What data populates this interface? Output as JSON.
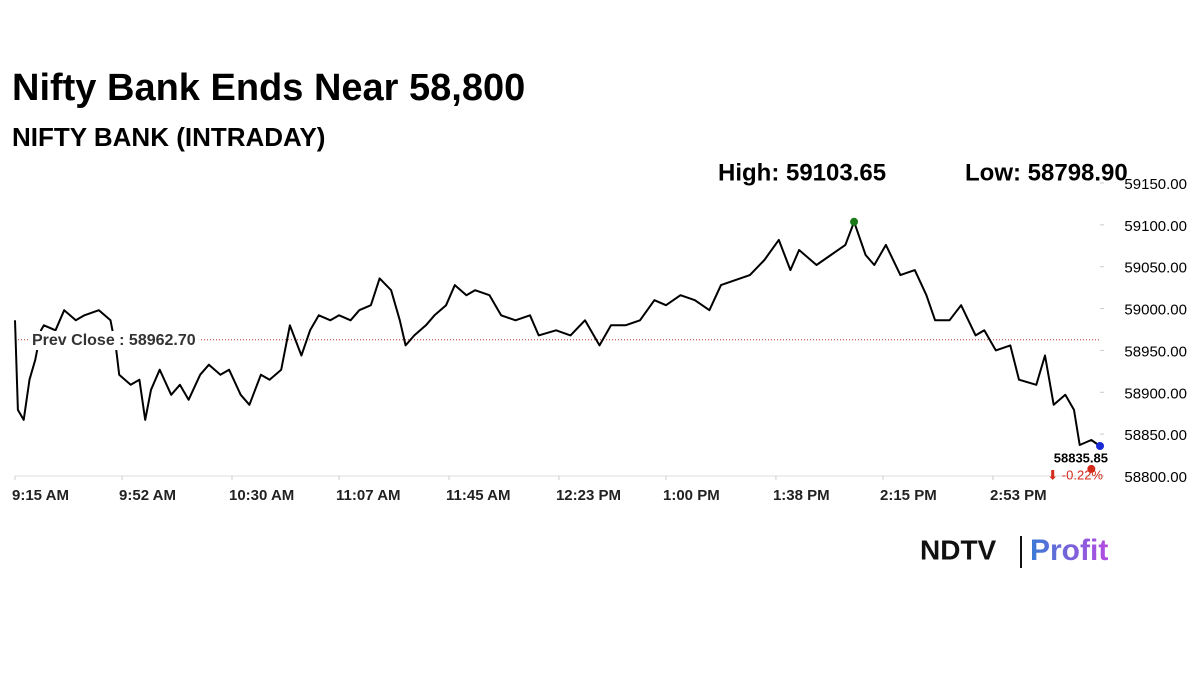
{
  "chart_data": {
    "type": "line",
    "title": "Nifty Bank Ends Near 58,800",
    "subtitle": "NIFTY BANK (INTRADAY)",
    "high": {
      "value": 59103.65,
      "label": "High: 59103.65",
      "x": 845,
      "color": "#1a7a1a"
    },
    "low": {
      "value": 58798.9,
      "label": "Low: 58798.90",
      "x": 927,
      "color": "#d42a1a"
    },
    "prev_close": {
      "value": 58962.7,
      "label": "Prev Close : 58962.70",
      "color": "#c0392b"
    },
    "last": {
      "value": 58835.85,
      "label": "58835.85",
      "color": "#1a2ad4"
    },
    "change": {
      "value": -0.22,
      "label": "⬇ -0.22%",
      "color": "#d42a1a"
    },
    "color": "#000000",
    "x": [
      555,
      556,
      558,
      560,
      562,
      564,
      565,
      569,
      572,
      576,
      579,
      584,
      588,
      590,
      591,
      595,
      598,
      600,
      602,
      605,
      609,
      612,
      615,
      619,
      622,
      626,
      629,
      633,
      636,
      640,
      643,
      647,
      650,
      654,
      657,
      660,
      664,
      667,
      671,
      674,
      678,
      681,
      685,
      688,
      690,
      693,
      697,
      700,
      704,
      707,
      711,
      714,
      719,
      723,
      728,
      733,
      736,
      742,
      747,
      752,
      757,
      761,
      766,
      771,
      776,
      780,
      785,
      790,
      795,
      799,
      804,
      809,
      814,
      819,
      823,
      826,
      832,
      837,
      842,
      845,
      849,
      852,
      856,
      861,
      866,
      870,
      873,
      878,
      882,
      887,
      890,
      894,
      899,
      902,
      908,
      911,
      914,
      918,
      921,
      923,
      927,
      930
    ],
    "values": [
      58986,
      58879,
      58867,
      58915,
      58939,
      58974,
      58980,
      58974,
      58998,
      58986,
      58992,
      58998,
      58986,
      58950,
      58921,
      58909,
      58915,
      58867,
      58903,
      58927,
      58897,
      58909,
      58891,
      58921,
      58933,
      58921,
      58927,
      58897,
      58885,
      58921,
      58915,
      58927,
      58980,
      58944,
      58974,
      58992,
      58986,
      58992,
      58986,
      58998,
      59004,
      59036,
      59022,
      58986,
      58956,
      58968,
      58980,
      58992,
      59004,
      59028,
      59016,
      59022,
      59016,
      58992,
      58986,
      58992,
      58968,
      58974,
      58968,
      58986,
      58956,
      58980,
      58980,
      58986,
      59010,
      59004,
      59016,
      59010,
      58998,
      59028,
      59034,
      59040,
      59058,
      59082,
      59046,
      59070,
      59052,
      59064,
      59076,
      59103.65,
      59064,
      59052,
      59076,
      59040,
      59046,
      59016,
      58986,
      58986,
      59004,
      58968,
      58974,
      58950,
      58956,
      58915,
      58909,
      58944,
      58885,
      58897,
      58879,
      58837,
      58843,
      58835.85
    ],
    "xlim": [
      555,
      930
    ],
    "xticks": [
      {
        "value": 555,
        "label": "9:15 AM"
      },
      {
        "value": 592,
        "label": "9:52 AM"
      },
      {
        "value": 630,
        "label": "10:30 AM"
      },
      {
        "value": 667,
        "label": "11:07 AM"
      },
      {
        "value": 705,
        "label": "11:45 AM"
      },
      {
        "value": 743,
        "label": "12:23 PM"
      },
      {
        "value": 780,
        "label": "1:00 PM"
      },
      {
        "value": 818,
        "label": "1:38 PM"
      },
      {
        "value": 855,
        "label": "2:15 PM"
      },
      {
        "value": 893,
        "label": "2:53 PM"
      }
    ],
    "ylim": [
      58800,
      59150
    ],
    "yticks": [
      {
        "value": 58800,
        "label": "58800.00"
      },
      {
        "value": 58850,
        "label": "58850.00"
      },
      {
        "value": 58900,
        "label": "58900.00"
      },
      {
        "value": 58950,
        "label": "58950.00"
      },
      {
        "value": 59000,
        "label": "59000.00"
      },
      {
        "value": 59050,
        "label": "59050.00"
      },
      {
        "value": 59100,
        "label": "59100.00"
      },
      {
        "value": 59150,
        "label": "59150.00"
      }
    ],
    "logo": {
      "brand": "NDTV",
      "product": "Profit"
    }
  }
}
